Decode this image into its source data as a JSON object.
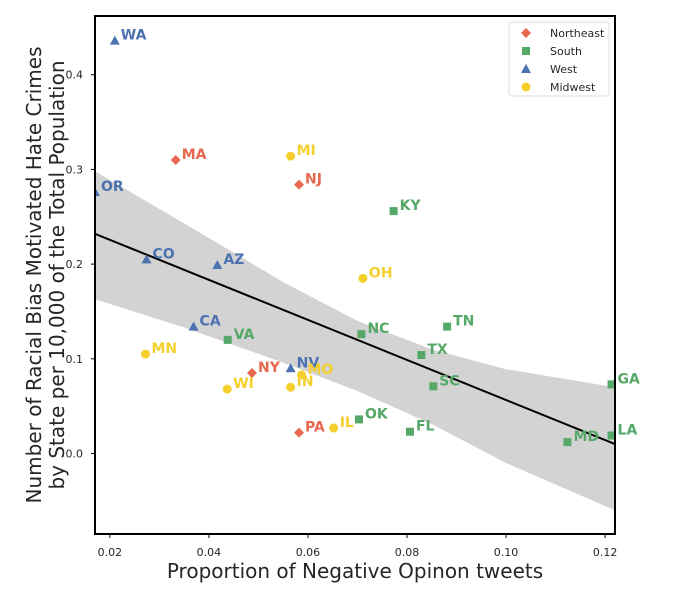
{
  "chart_data": {
    "type": "scatter",
    "xlabel": "Proportion of Negative Opinon tweets",
    "ylabel_lines": [
      "Number of Racial Bias Motivated Hate Crimes",
      "by State per 10,000 of the Total Population"
    ],
    "xlim": [
      0.017,
      0.122
    ],
    "ylim": [
      -0.085,
      0.462
    ],
    "xticks": [
      "0.02",
      "0.04",
      "0.06",
      "0.08",
      "0.10",
      "0.12"
    ],
    "xtick_values": [
      0.02,
      0.04,
      0.06,
      0.08,
      0.1,
      0.12
    ],
    "yticks": [
      "0.0",
      "0.1",
      "0.2",
      "0.3",
      "0.4"
    ],
    "ytick_values": [
      0.0,
      0.1,
      0.2,
      0.3,
      0.4
    ],
    "grid": false,
    "legend_position": "top-right",
    "series": [
      {
        "name": "Northeast",
        "color": "#e8674f",
        "marker": "diamond",
        "points": [
          {
            "label": "MA",
            "x": 0.0333,
            "y": 0.31
          },
          {
            "label": "NJ",
            "x": 0.0582,
            "y": 0.284
          },
          {
            "label": "NY",
            "x": 0.0487,
            "y": 0.085
          },
          {
            "label": "PA",
            "x": 0.0582,
            "y": 0.022
          }
        ]
      },
      {
        "name": "South",
        "color": "#55a868",
        "marker": "square",
        "points": [
          {
            "label": "KY",
            "x": 0.0773,
            "y": 0.256
          },
          {
            "label": "VA",
            "x": 0.0438,
            "y": 0.12
          },
          {
            "label": "NC",
            "x": 0.0708,
            "y": 0.126
          },
          {
            "label": "TN",
            "x": 0.0881,
            "y": 0.134
          },
          {
            "label": "TX",
            "x": 0.0829,
            "y": 0.104
          },
          {
            "label": "SC",
            "x": 0.0853,
            "y": 0.071
          },
          {
            "label": "OK",
            "x": 0.0703,
            "y": 0.036
          },
          {
            "label": "FL",
            "x": 0.0806,
            "y": 0.023
          },
          {
            "label": "GA",
            "x": 0.1213,
            "y": 0.073
          },
          {
            "label": "MD",
            "x": 0.1124,
            "y": 0.012
          },
          {
            "label": "LA",
            "x": 0.1213,
            "y": 0.019
          }
        ]
      },
      {
        "name": "West",
        "color": "#4c72b0",
        "marker": "triangle",
        "points": [
          {
            "label": "WA",
            "x": 0.021,
            "y": 0.436
          },
          {
            "label": "OR",
            "x": 0.017,
            "y": 0.276
          },
          {
            "label": "CO",
            "x": 0.0274,
            "y": 0.205
          },
          {
            "label": "AZ",
            "x": 0.0417,
            "y": 0.199
          },
          {
            "label": "CA",
            "x": 0.0369,
            "y": 0.134
          },
          {
            "label": "NV",
            "x": 0.0565,
            "y": 0.09
          }
        ]
      },
      {
        "name": "Midwest",
        "color": "#f5d02c",
        "marker": "circle",
        "points": [
          {
            "label": "MI",
            "x": 0.0565,
            "y": 0.314
          },
          {
            "label": "OH",
            "x": 0.0711,
            "y": 0.185
          },
          {
            "label": "MN",
            "x": 0.0272,
            "y": 0.105
          },
          {
            "label": "MO",
            "x": 0.0587,
            "y": 0.083
          },
          {
            "label": "WI",
            "x": 0.0437,
            "y": 0.068
          },
          {
            "label": "IN",
            "x": 0.0565,
            "y": 0.07
          },
          {
            "label": "IL",
            "x": 0.0652,
            "y": 0.027
          }
        ]
      }
    ],
    "regression": {
      "color": "#000000",
      "band_color": "#d3d3d3",
      "line": [
        [
          0.017,
          0.232
        ],
        [
          0.122,
          0.01
        ]
      ],
      "band_upper": [
        [
          0.017,
          0.298
        ],
        [
          0.035,
          0.243
        ],
        [
          0.055,
          0.181
        ],
        [
          0.07,
          0.14
        ],
        [
          0.085,
          0.11
        ],
        [
          0.1,
          0.089
        ],
        [
          0.122,
          0.07
        ]
      ],
      "band_lower": [
        [
          0.017,
          0.163
        ],
        [
          0.035,
          0.133
        ],
        [
          0.055,
          0.096
        ],
        [
          0.07,
          0.066
        ],
        [
          0.085,
          0.031
        ],
        [
          0.1,
          -0.01
        ],
        [
          0.122,
          -0.06
        ]
      ]
    }
  }
}
